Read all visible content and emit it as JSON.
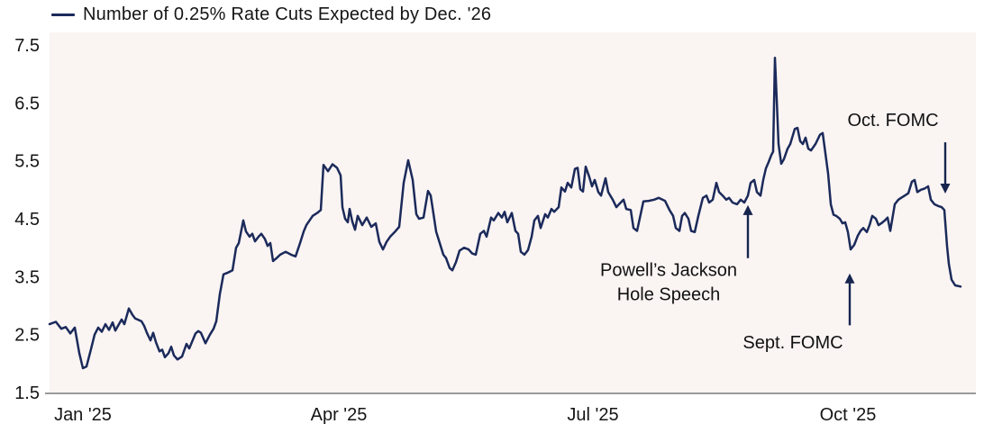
{
  "legend": {
    "label": "Number of 0.25% Rate Cuts Expected by Dec. '26"
  },
  "colors": {
    "line": "#1b2a5a",
    "plot_background": "#faf4f3",
    "axis": "#9b9b9b",
    "text": "#151515",
    "annotation_arrow": "#16254e"
  },
  "chart_data": {
    "type": "line",
    "title": "Number of 0.25% Rate Cuts Expected by Dec. '26",
    "xlabel": "",
    "ylabel": "",
    "ylim": [
      1.5,
      7.5
    ],
    "yticks": [
      "7.5",
      "6.5",
      "5.5",
      "4.5",
      "3.5",
      "2.5",
      "1.5"
    ],
    "ytick_values": [
      7.5,
      6.5,
      5.5,
      4.5,
      3.5,
      2.5,
      1.5
    ],
    "xlim": [
      0,
      1025
    ],
    "xticks": [
      {
        "x": 37,
        "label": "Jan '25"
      },
      {
        "x": 321,
        "label": "Apr '25"
      },
      {
        "x": 603,
        "label": "Jul '25"
      },
      {
        "x": 886,
        "label": "Oct '25"
      }
    ],
    "grid": false,
    "legend_position": "top-left",
    "series": [
      {
        "name": "Number of 0.25% Rate Cuts Expected by Dec. '26",
        "points": [
          [
            0,
            2.68
          ],
          [
            7,
            2.72
          ],
          [
            13,
            2.6
          ],
          [
            18,
            2.63
          ],
          [
            23,
            2.52
          ],
          [
            28,
            2.62
          ],
          [
            33,
            2.18
          ],
          [
            37,
            1.92
          ],
          [
            41,
            1.95
          ],
          [
            46,
            2.25
          ],
          [
            50,
            2.5
          ],
          [
            54,
            2.62
          ],
          [
            58,
            2.55
          ],
          [
            62,
            2.68
          ],
          [
            66,
            2.58
          ],
          [
            70,
            2.71
          ],
          [
            73,
            2.57
          ],
          [
            77,
            2.68
          ],
          [
            80,
            2.76
          ],
          [
            83,
            2.68
          ],
          [
            88,
            2.95
          ],
          [
            92,
            2.84
          ],
          [
            95,
            2.78
          ],
          [
            102,
            2.73
          ],
          [
            105,
            2.65
          ],
          [
            108,
            2.53
          ],
          [
            112,
            2.4
          ],
          [
            115,
            2.53
          ],
          [
            118,
            2.37
          ],
          [
            122,
            2.21
          ],
          [
            125,
            2.24
          ],
          [
            128,
            2.11
          ],
          [
            132,
            2.18
          ],
          [
            135,
            2.29
          ],
          [
            138,
            2.14
          ],
          [
            142,
            2.07
          ],
          [
            147,
            2.12
          ],
          [
            152,
            2.34
          ],
          [
            155,
            2.26
          ],
          [
            158,
            2.37
          ],
          [
            162,
            2.52
          ],
          [
            165,
            2.56
          ],
          [
            168,
            2.53
          ],
          [
            173,
            2.35
          ],
          [
            178,
            2.5
          ],
          [
            182,
            2.6
          ],
          [
            185,
            2.73
          ],
          [
            189,
            3.2
          ],
          [
            193,
            3.54
          ],
          [
            198,
            3.57
          ],
          [
            203,
            3.61
          ],
          [
            207,
            4.0
          ],
          [
            210,
            4.08
          ],
          [
            215,
            4.47
          ],
          [
            218,
            4.28
          ],
          [
            222,
            4.19
          ],
          [
            225,
            4.24
          ],
          [
            228,
            4.11
          ],
          [
            232,
            4.19
          ],
          [
            235,
            4.24
          ],
          [
            239,
            4.15
          ],
          [
            242,
            4.03
          ],
          [
            245,
            4.08
          ],
          [
            248,
            3.77
          ],
          [
            252,
            3.82
          ],
          [
            256,
            3.88
          ],
          [
            262,
            3.93
          ],
          [
            268,
            3.88
          ],
          [
            273,
            3.85
          ],
          [
            278,
            4.08
          ],
          [
            282,
            4.28
          ],
          [
            285,
            4.39
          ],
          [
            292,
            4.55
          ],
          [
            297,
            4.6
          ],
          [
            301,
            4.65
          ],
          [
            304,
            5.43
          ],
          [
            309,
            5.32
          ],
          [
            314,
            5.44
          ],
          [
            319,
            5.38
          ],
          [
            323,
            5.25
          ],
          [
            325,
            4.7
          ],
          [
            328,
            4.5
          ],
          [
            331,
            4.44
          ],
          [
            333,
            4.67
          ],
          [
            336,
            4.45
          ],
          [
            339,
            4.31
          ],
          [
            342,
            4.55
          ],
          [
            347,
            4.39
          ],
          [
            352,
            4.52
          ],
          [
            357,
            4.36
          ],
          [
            362,
            4.42
          ],
          [
            366,
            4.1
          ],
          [
            370,
            3.97
          ],
          [
            374,
            4.1
          ],
          [
            378,
            4.19
          ],
          [
            383,
            4.27
          ],
          [
            388,
            4.36
          ],
          [
            393,
            5.12
          ],
          [
            398,
            5.51
          ],
          [
            403,
            5.17
          ],
          [
            407,
            4.58
          ],
          [
            410,
            4.5
          ],
          [
            415,
            4.52
          ],
          [
            420,
            4.98
          ],
          [
            423,
            4.9
          ],
          [
            426,
            4.59
          ],
          [
            429,
            4.28
          ],
          [
            433,
            4.08
          ],
          [
            437,
            3.88
          ],
          [
            440,
            3.82
          ],
          [
            444,
            3.65
          ],
          [
            447,
            3.61
          ],
          [
            451,
            3.75
          ],
          [
            455,
            3.95
          ],
          [
            460,
            4.0
          ],
          [
            465,
            3.97
          ],
          [
            469,
            3.9
          ],
          [
            473,
            3.88
          ],
          [
            478,
            4.24
          ],
          [
            482,
            4.29
          ],
          [
            485,
            4.19
          ],
          [
            490,
            4.52
          ],
          [
            493,
            4.47
          ],
          [
            498,
            4.6
          ],
          [
            502,
            4.52
          ],
          [
            505,
            4.62
          ],
          [
            508,
            4.44
          ],
          [
            513,
            4.6
          ],
          [
            517,
            4.29
          ],
          [
            520,
            4.24
          ],
          [
            523,
            3.93
          ],
          [
            527,
            3.88
          ],
          [
            531,
            3.96
          ],
          [
            535,
            4.19
          ],
          [
            538,
            4.47
          ],
          [
            542,
            4.55
          ],
          [
            545,
            4.34
          ],
          [
            550,
            4.58
          ],
          [
            553,
            4.52
          ],
          [
            557,
            4.67
          ],
          [
            560,
            4.62
          ],
          [
            565,
            4.7
          ],
          [
            568,
            5.04
          ],
          [
            572,
            4.97
          ],
          [
            575,
            5.12
          ],
          [
            579,
            5.04
          ],
          [
            583,
            5.36
          ],
          [
            586,
            5.38
          ],
          [
            589,
            5.01
          ],
          [
            592,
            4.97
          ],
          [
            595,
            5.4
          ],
          [
            599,
            5.22
          ],
          [
            602,
            5.06
          ],
          [
            605,
            5.17
          ],
          [
            609,
            4.96
          ],
          [
            612,
            4.9
          ],
          [
            617,
            5.2
          ],
          [
            620,
            4.96
          ],
          [
            625,
            4.83
          ],
          [
            629,
            4.7
          ],
          [
            632,
            4.75
          ],
          [
            637,
            4.83
          ],
          [
            640,
            4.67
          ],
          [
            645,
            4.65
          ],
          [
            648,
            4.34
          ],
          [
            652,
            4.29
          ],
          [
            656,
            4.58
          ],
          [
            659,
            4.8
          ],
          [
            665,
            4.81
          ],
          [
            671,
            4.83
          ],
          [
            676,
            4.86
          ],
          [
            683,
            4.81
          ],
          [
            688,
            4.65
          ],
          [
            692,
            4.55
          ],
          [
            695,
            4.34
          ],
          [
            699,
            4.29
          ],
          [
            702,
            4.55
          ],
          [
            705,
            4.6
          ],
          [
            709,
            4.5
          ],
          [
            712,
            4.29
          ],
          [
            716,
            4.27
          ],
          [
            720,
            4.55
          ],
          [
            725,
            4.86
          ],
          [
            729,
            4.9
          ],
          [
            732,
            4.78
          ],
          [
            736,
            4.83
          ],
          [
            740,
            5.12
          ],
          [
            743,
            4.96
          ],
          [
            747,
            4.9
          ],
          [
            751,
            4.83
          ],
          [
            754,
            4.86
          ],
          [
            758,
            4.78
          ],
          [
            763,
            4.75
          ],
          [
            767,
            4.83
          ],
          [
            771,
            4.78
          ],
          [
            775,
            4.9
          ],
          [
            778,
            5.12
          ],
          [
            782,
            5.17
          ],
          [
            785,
            4.96
          ],
          [
            789,
            4.9
          ],
          [
            792,
            5.17
          ],
          [
            795,
            5.37
          ],
          [
            798,
            5.48
          ],
          [
            801,
            5.6
          ],
          [
            803,
            5.66
          ],
          [
            805,
            7.28
          ],
          [
            807,
            6.55
          ],
          [
            809,
            5.79
          ],
          [
            812,
            5.45
          ],
          [
            815,
            5.53
          ],
          [
            819,
            5.71
          ],
          [
            822,
            5.79
          ],
          [
            827,
            6.05
          ],
          [
            830,
            6.07
          ],
          [
            833,
            5.84
          ],
          [
            836,
            5.79
          ],
          [
            839,
            5.9
          ],
          [
            842,
            5.71
          ],
          [
            845,
            5.68
          ],
          [
            850,
            5.79
          ],
          [
            855,
            5.95
          ],
          [
            858,
            5.98
          ],
          [
            861,
            5.63
          ],
          [
            864,
            5.28
          ],
          [
            867,
            4.75
          ],
          [
            870,
            4.57
          ],
          [
            873,
            4.55
          ],
          [
            877,
            4.5
          ],
          [
            880,
            4.42
          ],
          [
            883,
            4.44
          ],
          [
            886,
            4.27
          ],
          [
            889,
            3.97
          ],
          [
            893,
            4.05
          ],
          [
            897,
            4.21
          ],
          [
            900,
            4.29
          ],
          [
            903,
            4.34
          ],
          [
            907,
            4.27
          ],
          [
            910,
            4.39
          ],
          [
            913,
            4.55
          ],
          [
            917,
            4.5
          ],
          [
            920,
            4.39
          ],
          [
            923,
            4.42
          ],
          [
            927,
            4.47
          ],
          [
            930,
            4.52
          ],
          [
            933,
            4.29
          ],
          [
            938,
            4.75
          ],
          [
            942,
            4.83
          ],
          [
            945,
            4.86
          ],
          [
            949,
            4.9
          ],
          [
            953,
            4.94
          ],
          [
            957,
            5.14
          ],
          [
            960,
            5.17
          ],
          [
            963,
            4.96
          ],
          [
            967,
            5.0
          ],
          [
            971,
            5.02
          ],
          [
            975,
            5.06
          ],
          [
            978,
            4.83
          ],
          [
            982,
            4.75
          ],
          [
            986,
            4.72
          ],
          [
            990,
            4.7
          ],
          [
            993,
            4.65
          ],
          [
            996,
            4.03
          ],
          [
            998,
            3.72
          ],
          [
            1001,
            3.45
          ],
          [
            1005,
            3.35
          ],
          [
            1011,
            3.33
          ]
        ]
      }
    ],
    "annotations": [
      {
        "id": "jackson-hole",
        "text_lines": [
          "Powell’s Jackson",
          "Hole Speech"
        ],
        "text_x": 687,
        "text_v": 3.62,
        "arrow": {
          "x": 775,
          "from_v": 3.82,
          "to_v": 4.72,
          "direction": "up"
        }
      },
      {
        "id": "sept-fomc",
        "text_lines": [
          "Sept. FOMC"
        ],
        "text_x": 825,
        "text_v": 2.37,
        "arrow": {
          "x": 888,
          "from_v": 2.66,
          "to_v": 3.54,
          "direction": "up"
        }
      },
      {
        "id": "oct-fomc",
        "text_lines": [
          "Oct. FOMC"
        ],
        "text_x": 936,
        "text_v": 6.21,
        "arrow": {
          "x": 994,
          "from_v": 5.82,
          "to_v": 4.95,
          "direction": "down"
        }
      }
    ]
  }
}
